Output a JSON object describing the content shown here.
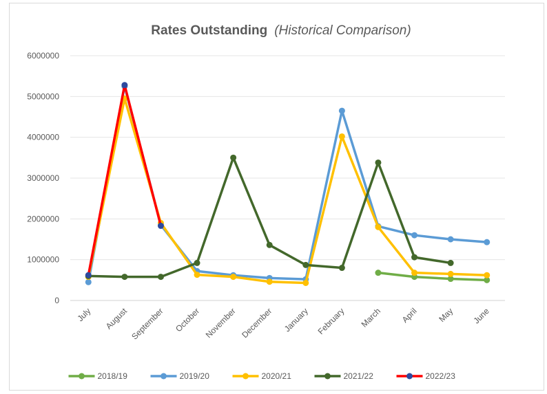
{
  "chart_data": {
    "type": "line",
    "title": "Rates Outstanding",
    "subtitle": "(Historical Comparison)",
    "categories": [
      "July",
      "August",
      "September",
      "October",
      "November",
      "December",
      "January",
      "February",
      "March",
      "April",
      "May",
      "June"
    ],
    "ylim": [
      0,
      6000000
    ],
    "yticks": [
      0,
      1000000,
      2000000,
      3000000,
      4000000,
      5000000,
      6000000
    ],
    "grid": true,
    "legend": "bottom",
    "series": [
      {
        "name": "2018/19",
        "color": "#70ad47",
        "values": [
          null,
          null,
          null,
          null,
          null,
          null,
          null,
          null,
          680000,
          580000,
          530000,
          500000
        ]
      },
      {
        "name": "2019/20",
        "color": "#5b9bd5",
        "values": [
          450000,
          5250000,
          1850000,
          720000,
          620000,
          550000,
          520000,
          4650000,
          1820000,
          1600000,
          1500000,
          1430000
        ]
      },
      {
        "name": "2020/21",
        "color": "#ffc000",
        "values": [
          580000,
          4950000,
          1900000,
          630000,
          580000,
          460000,
          430000,
          4020000,
          1800000,
          680000,
          650000,
          620000
        ]
      },
      {
        "name": "2021/22",
        "color": "#43682b",
        "values": [
          600000,
          580000,
          580000,
          920000,
          3500000,
          1360000,
          870000,
          800000,
          3380000,
          1060000,
          920000,
          null
        ]
      },
      {
        "name": "2022/23",
        "color": "#ff0000",
        "marker_color": "#2e4a9e",
        "values": [
          620000,
          5280000,
          1830000,
          null,
          null,
          null,
          null,
          null,
          null,
          null,
          null,
          null
        ]
      }
    ]
  }
}
